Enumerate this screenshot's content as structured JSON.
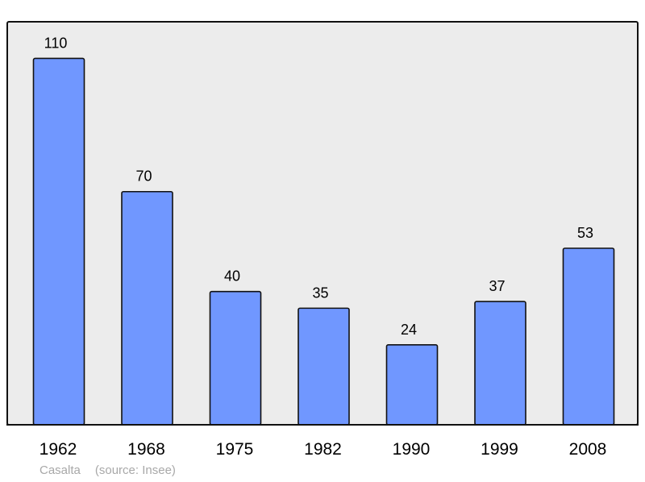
{
  "chart_data": {
    "type": "bar",
    "categories": [
      "1962",
      "1968",
      "1975",
      "1982",
      "1990",
      "1999",
      "2008"
    ],
    "values": [
      110,
      70,
      40,
      35,
      24,
      37,
      53
    ],
    "data_labels": [
      "110",
      "70",
      "40",
      "35",
      "24",
      "37",
      "53"
    ],
    "ylim": [
      0,
      121
    ],
    "grid": false,
    "colors": {
      "plot_background": "#ececec",
      "bar_fill": "#7097ff",
      "bar_stroke": "#111111",
      "frame": "#111111",
      "text": "#000000"
    }
  },
  "footer": {
    "place": "Casalta",
    "source": "(source: Insee)"
  }
}
